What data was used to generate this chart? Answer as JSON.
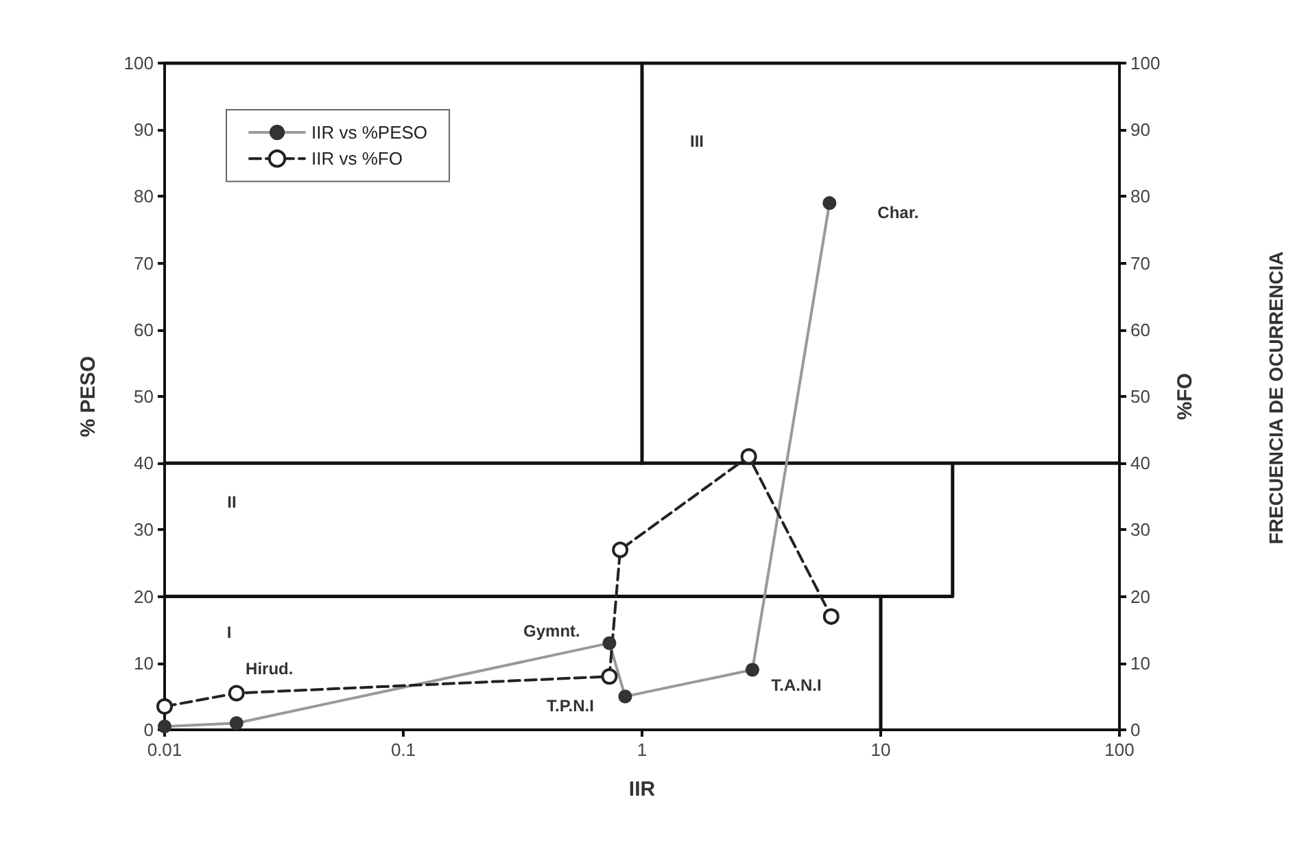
{
  "chart_data": {
    "type": "line",
    "xlabel": "IIR",
    "ylabel": "% PESO",
    "y2label": "%FO",
    "log": "x",
    "xlim": [
      0.01,
      100
    ],
    "xticks": [
      0.01,
      0.1,
      1,
      10,
      100
    ],
    "ylim": [
      0,
      100
    ],
    "yticks": [
      0,
      10,
      20,
      30,
      40,
      50,
      60,
      70,
      80,
      90,
      100
    ],
    "y2lim": [
      0,
      100
    ],
    "y2ticks": [
      0,
      10,
      20,
      30,
      40,
      50,
      60,
      70,
      80,
      90,
      100
    ],
    "grid": false,
    "legend": "top left",
    "series": [
      {
        "name": "IIR vs %PESO",
        "color": "#999999",
        "marker": "circle",
        "line_style": "solid",
        "x": [
          0.01,
          0.02,
          0.73,
          0.85,
          2.9,
          6.1
        ],
        "values": [
          0.5,
          1,
          13,
          5,
          9,
          79
        ]
      },
      {
        "name": "IIR vs %FO",
        "color": "#222222",
        "marker": "circle",
        "line_style": "dashed",
        "x": [
          0.01,
          0.02,
          0.73,
          0.81,
          2.8,
          6.2
        ],
        "values": [
          3.5,
          5.5,
          8,
          27,
          41,
          17
        ]
      },
      {
        "color": "#111111",
        "marker": "none",
        "line_style": "solid",
        "x": [
          10,
          10
        ],
        "values": [
          0,
          20
        ]
      },
      {
        "color": "#111111",
        "marker": "none",
        "line_style": "solid",
        "x": [
          20,
          20,
          0.01
        ],
        "values": [
          40,
          20,
          20
        ]
      },
      {
        "color": "#111111",
        "marker": "none",
        "line_style": "solid",
        "x": [
          0.01,
          100
        ],
        "values": [
          40,
          40
        ]
      },
      {
        "color": "#111111",
        "marker": "none",
        "line_style": "solid",
        "x": [
          1,
          1
        ],
        "values": [
          40,
          100
        ]
      },
      {
        "color": "#111111",
        "marker": "none",
        "line_style": "solid",
        "x": [
          0.01,
          100
        ],
        "values": [
          100,
          100
        ]
      }
    ],
    "annotations": [
      "I",
      "II",
      "III",
      {
        "text": "Hirud.",
        "x": 0.02,
        "y": 5.5
      },
      {
        "text": "Gymnt.",
        "x": 0.73,
        "y": 13
      },
      {
        "text": "T.P.N.I",
        "x": 0.85,
        "y": 5
      },
      {
        "text": "T.A.N.I",
        "x": 2.9,
        "y": 9
      },
      {
        "text": "Char.",
        "x": 6.1,
        "y": 79
      },
      "FRECUENCIA DE OCURRENCIA"
    ]
  }
}
